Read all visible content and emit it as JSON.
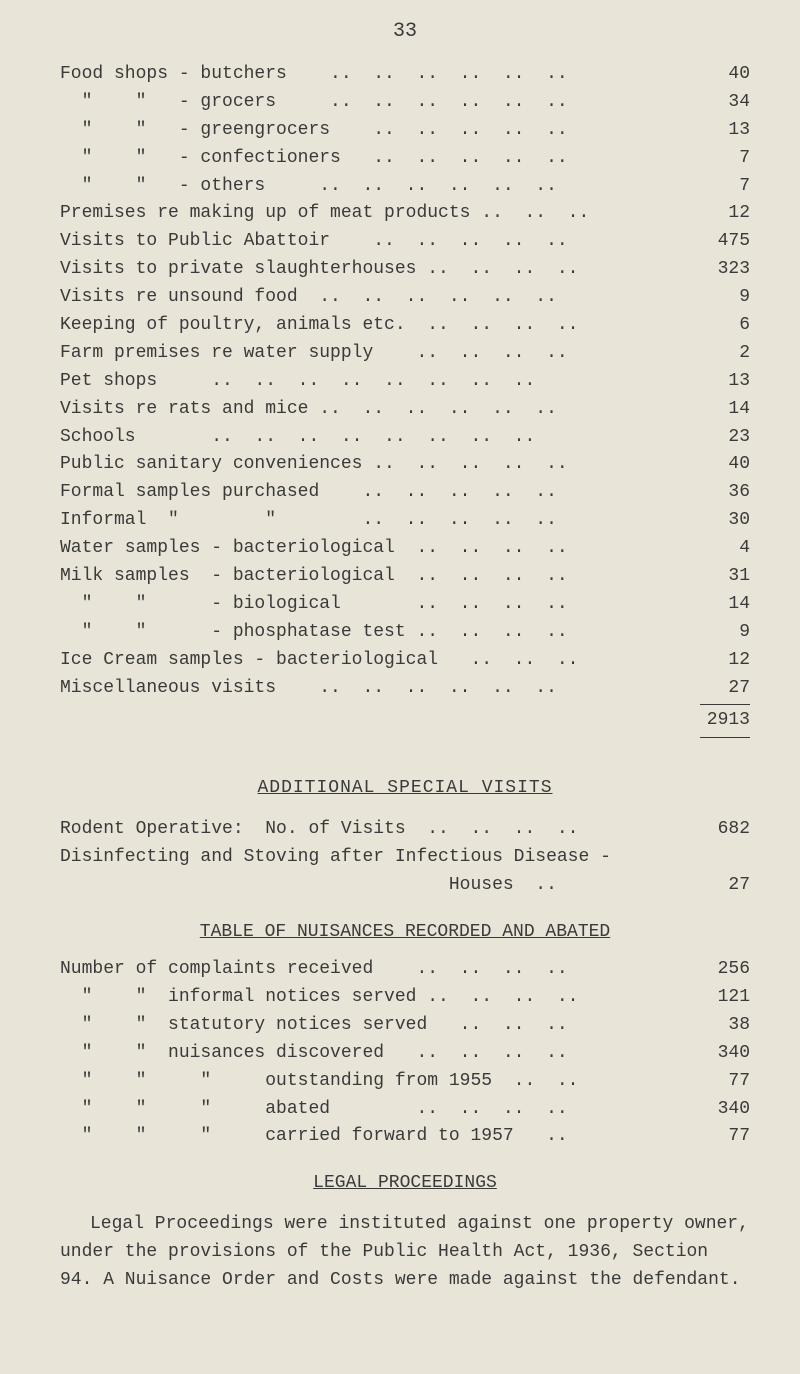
{
  "page_number": "33",
  "main_rows": [
    {
      "label": "Food shops - butchers    ..  ..  ..  ..  ..  ..",
      "value": "40"
    },
    {
      "label": "  \"    \"   - grocers     ..  ..  ..  ..  ..  ..",
      "value": "34"
    },
    {
      "label": "  \"    \"   - greengrocers    ..  ..  ..  ..  ..",
      "value": "13"
    },
    {
      "label": "  \"    \"   - confectioners   ..  ..  ..  ..  ..",
      "value": "7"
    },
    {
      "label": "  \"    \"   - others     ..  ..  ..  ..  ..  ..",
      "value": "7"
    },
    {
      "label": "Premises re making up of meat products ..  ..  ..",
      "value": "12"
    },
    {
      "label": "Visits to Public Abattoir    ..  ..  ..  ..  ..",
      "value": "475"
    },
    {
      "label": "Visits to private slaughterhouses ..  ..  ..  ..",
      "value": "323"
    },
    {
      "label": "Visits re unsound food  ..  ..  ..  ..  ..  ..",
      "value": "9"
    },
    {
      "label": "Keeping of poultry, animals etc.  ..  ..  ..  ..",
      "value": "6"
    },
    {
      "label": "Farm premises re water supply    ..  ..  ..  ..",
      "value": "2"
    },
    {
      "label": "Pet shops     ..  ..  ..  ..  ..  ..  ..  ..",
      "value": "13"
    },
    {
      "label": "Visits re rats and mice ..  ..  ..  ..  ..  ..",
      "value": "14"
    },
    {
      "label": "Schools       ..  ..  ..  ..  ..  ..  ..  ..",
      "value": "23"
    },
    {
      "label": "Public sanitary conveniences ..  ..  ..  ..  ..",
      "value": "40"
    },
    {
      "label": "Formal samples purchased    ..  ..  ..  ..  ..",
      "value": "36"
    },
    {
      "label": "Informal  \"        \"        ..  ..  ..  ..  ..",
      "value": "30"
    },
    {
      "label": "Water samples - bacteriological  ..  ..  ..  ..",
      "value": "4"
    },
    {
      "label": "Milk samples  - bacteriological  ..  ..  ..  ..",
      "value": "31"
    },
    {
      "label": "  \"    \"      - biological       ..  ..  ..  ..",
      "value": "14"
    },
    {
      "label": "  \"    \"      - phosphatase test ..  ..  ..  ..",
      "value": "9"
    },
    {
      "label": "Ice Cream samples - bacteriological   ..  ..  ..",
      "value": "12"
    },
    {
      "label": "Miscellaneous visits    ..  ..  ..  ..  ..  ..",
      "value": "27"
    }
  ],
  "main_total": "2913",
  "section1_title": "ADDITIONAL  SPECIAL  VISITS",
  "section1_rows": [
    {
      "label": "Rodent Operative:  No. of Visits  ..  ..  ..  ..",
      "value": "682"
    },
    {
      "label": "Disinfecting and Stoving after Infectious Disease -",
      "value": ""
    },
    {
      "label": "                                    Houses  ..",
      "value": "27"
    }
  ],
  "section2_title": "TABLE  OF  NUISANCES  RECORDED  AND  ABATED",
  "section2_rows": [
    {
      "label": "Number of complaints received    ..  ..  ..  ..",
      "value": "256"
    },
    {
      "label": "  \"    \"  informal notices served ..  ..  ..  ..",
      "value": "121"
    },
    {
      "label": "  \"    \"  statutory notices served   ..  ..  ..",
      "value": "38"
    },
    {
      "label": "  \"    \"  nuisances discovered   ..  ..  ..  ..",
      "value": "340"
    },
    {
      "label": "  \"    \"     \"     outstanding from 1955  ..  ..",
      "value": "77"
    },
    {
      "label": "  \"    \"     \"     abated        ..  ..  ..  ..",
      "value": "340"
    },
    {
      "label": "  \"    \"     \"     carried forward to 1957   ..",
      "value": "77"
    }
  ],
  "section3_title": "LEGAL  PROCEEDINGS",
  "legal_text": "Legal Proceedings were instituted against one property owner, under the provisions of the Public Health Act, 1936, Section 94. A Nuisance Order and Costs were made against the defendant.",
  "colors": {
    "background": "#e8e4d8",
    "text": "#3a3a3a"
  },
  "font": {
    "family": "Courier New",
    "size_body": 18,
    "size_pagenum": 20
  }
}
